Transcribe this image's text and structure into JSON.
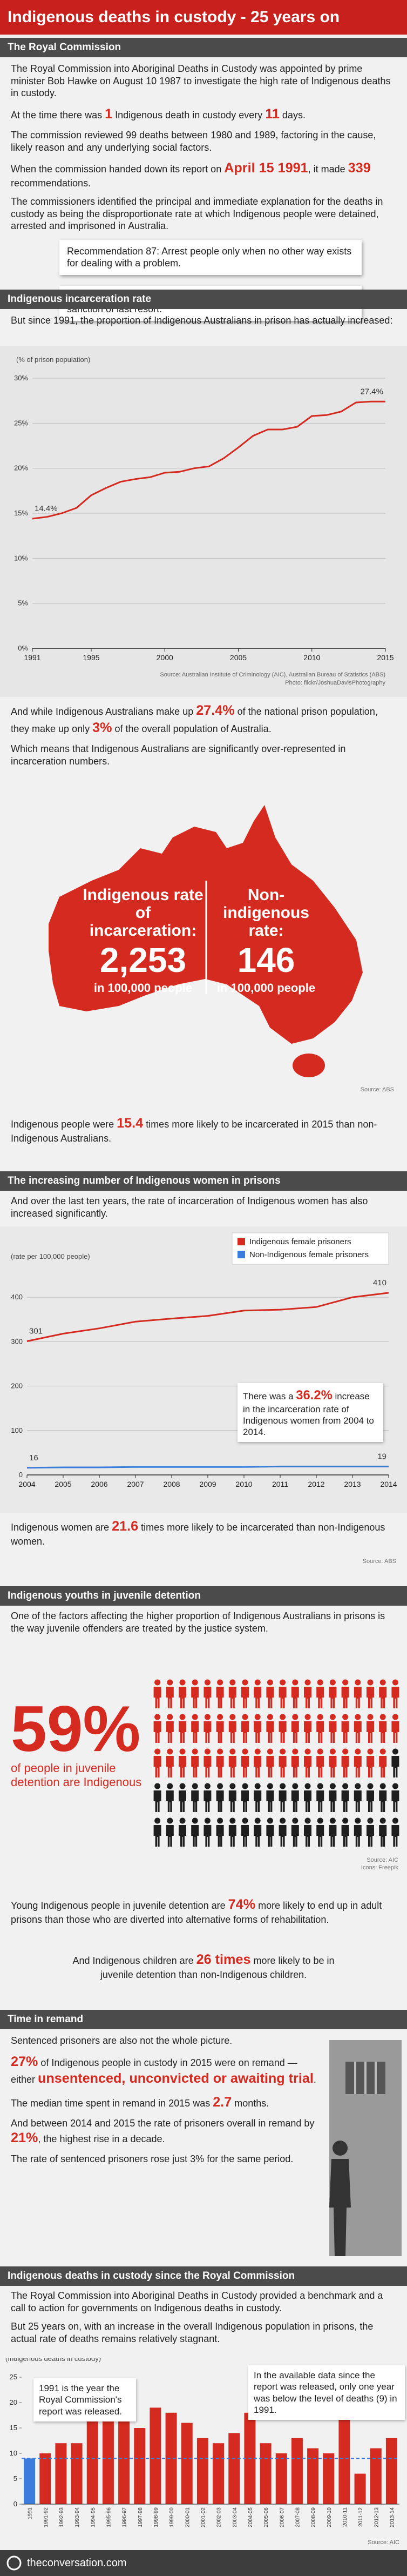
{
  "title": "Indigenous deaths in custody - 25 years on",
  "sections": [
    {
      "heading": "The Royal Commission",
      "paragraphs": [
        [
          "The Royal Commission into Aboriginal Deaths in Custody was appointed by prime minister Bob Hawke on August 10 1987 to investigate the high rate of Indigenous deaths in custody."
        ],
        [
          "At the time there was ",
          {
            "em": "1"
          },
          " Indigenous death in custody every ",
          {
            "em": "11"
          },
          " days."
        ],
        [
          "The commission reviewed 99 deaths between 1980 and 1989, factoring in the cause, likely reason and any underlying social factors."
        ],
        [
          "When the commission handed down its report on ",
          {
            "em": "April 15 1991"
          },
          ", it made ",
          {
            "em": "339"
          },
          " recommendations."
        ],
        [
          "The commissioners identified the principal and immediate explanation for the deaths in custody as being the disproportionate rate at which Indigenous people were detained, arrested and imprisoned in Australia."
        ]
      ],
      "recommendations": [
        "Recommendation 87: Arrest people only when no other way exists for dealing with a problem.",
        "Recommendation 92: Imprisonment should be utilised only as a sanction of last resort."
      ]
    },
    {
      "heading": "Indigenous incarceration rate",
      "intro": [
        [
          "But since 1991, the proportion of Indigenous Australians in prison has actually increased:"
        ]
      ],
      "paragraphs": [
        [
          "And while Indigenous Australians make up ",
          {
            "em": "27.4%"
          },
          " of the national prison population, they make up only ",
          {
            "em": "3%"
          },
          " of the overall population of Australia."
        ],
        [
          "Which means that Indigenous Australians are significantly over-represented in incarceration numbers."
        ]
      ],
      "map": {
        "left_label": "Indigenous rate of incarceration:",
        "left_value": "2,253",
        "left_unit": "in 100,000 people",
        "right_label": "Non-indigenous rate:",
        "right_value": "146",
        "right_unit": "in 100,000 people",
        "source": "Source: ABS"
      },
      "conclusion": [
        [
          "Indigenous people were ",
          {
            "em": "15.4"
          },
          " times more likely to be incarcerated in 2015 than non-Indigenous Australians."
        ]
      ]
    },
    {
      "heading": "The increasing number of Indigenous women in prisons",
      "intro": [
        [
          "And over the last ten years, the rate of incarceration of Indigenous women has also increased significantly."
        ]
      ],
      "conclusion": [
        [
          "Indigenous women are ",
          {
            "em": "21.6"
          },
          " times more likely to be incarcerated than non-Indigenous women."
        ]
      ],
      "source": "Source: ABS"
    },
    {
      "heading": "Indigenous youths in juvenile detention",
      "intro": [
        [
          "One of the factors affecting the higher proportion of Indigenous Australians in prisons is the way juvenile offenders are treated by the justice system."
        ]
      ],
      "pictogram": {
        "value": 59,
        "value_label": "59%",
        "caption": "of people in juvenile detention are Indigenous",
        "sources": [
          "Source: AIC",
          "Icons: Freepik"
        ]
      },
      "paragraphs": [
        [
          "Young Indigenous people in juvenile detention are ",
          {
            "em": "74%"
          },
          " more likely to end up in adult prisons than those who are diverted into alternative forms of rehabilitation."
        ]
      ],
      "closing": [
        [
          "And Indigenous children are ",
          {
            "em": "26 times"
          },
          " more likely to be in juvenile detention than non-Indigenous children."
        ]
      ]
    },
    {
      "heading": "Time in remand",
      "paragraphs": [
        [
          "Sentenced prisoners are also not the whole picture."
        ],
        [
          {
            "em": "27%"
          },
          " of Indigenous people in custody in 2015 were on remand — either ",
          {
            "em": "unsentenced, unconvicted or awaiting trial"
          },
          "."
        ],
        [
          "The median time spent in remand in 2015 was ",
          {
            "em": "2.7"
          },
          " months."
        ],
        [
          "And between 2014 and 2015 the rate of prisoners overall in remand by ",
          {
            "em": "21%"
          },
          ", the highest rise in a decade."
        ],
        [
          "The rate of sentenced prisoners rose just 3% for the same period."
        ]
      ]
    },
    {
      "heading": "Indigenous deaths in custody since the Royal Commission",
      "paragraphs": [
        [
          "The Royal Commission into Aboriginal Deaths in Custody provided a benchmark and a call to action for governments on Indigenous deaths in custody."
        ],
        [
          "But 25 years on, with an increase in the overall Indigenous population in prisons, the actual rate of deaths remains relatively stagnant."
        ]
      ]
    }
  ],
  "chart_data": [
    {
      "type": "line",
      "y_label": "(% of prison population)",
      "x": [
        1991,
        1992,
        1993,
        1994,
        1995,
        1996,
        1997,
        1998,
        1999,
        2000,
        2001,
        2002,
        2003,
        2004,
        2005,
        2006,
        2007,
        2008,
        2009,
        2010,
        2011,
        2012,
        2013,
        2014,
        2015
      ],
      "xlim": [
        1991,
        2015
      ],
      "xticks": [
        1991,
        1995,
        2000,
        2005,
        2010,
        2015
      ],
      "ylim": [
        0,
        30
      ],
      "yticks": [
        {
          "value": 0,
          "label": "0%"
        },
        {
          "value": 5,
          "label": "5%"
        },
        {
          "value": 10,
          "label": "10%"
        },
        {
          "value": 15,
          "label": "15%"
        },
        {
          "value": 20,
          "label": "20%"
        },
        {
          "value": 25,
          "label": "25%"
        },
        {
          "value": 30,
          "label": "30%"
        }
      ],
      "grid": true,
      "series": [
        {
          "name": "Indigenous share of prison population",
          "color": "#d42a20",
          "values": [
            14.4,
            14.6,
            15.0,
            15.6,
            17.0,
            17.8,
            18.5,
            18.8,
            19.0,
            19.5,
            19.6,
            20.0,
            20.2,
            21.1,
            22.3,
            23.6,
            24.3,
            24.3,
            24.6,
            25.8,
            25.9,
            26.3,
            27.3,
            27.4,
            27.4
          ],
          "value_labels": [
            "14.4%",
            null,
            null,
            null,
            null,
            null,
            null,
            null,
            null,
            null,
            null,
            null,
            null,
            null,
            null,
            null,
            null,
            null,
            null,
            null,
            null,
            null,
            null,
            null,
            "27.4%"
          ]
        }
      ],
      "source": "Source: Australian Institute of Criminology (AIC), Australian Bureau of Statistics (ABS)",
      "credit": "Photo: flickr/JoshuaDavisPhotography"
    },
    {
      "type": "line",
      "y_label": "(rate per 100,000 people)",
      "x": [
        2004,
        2005,
        2006,
        2007,
        2008,
        2009,
        2010,
        2011,
        2012,
        2013,
        2014
      ],
      "xlim": [
        2004,
        2014
      ],
      "xticks": [
        2004,
        2005,
        2006,
        2007,
        2008,
        2009,
        2010,
        2011,
        2012,
        2013,
        2014
      ],
      "ylim": [
        0,
        450
      ],
      "yticks": [
        0,
        100,
        200,
        300,
        400
      ],
      "grid": true,
      "legend": "top-right",
      "end_labels": true,
      "series": [
        {
          "name": "Indigenous female prisoners",
          "color": "#d42a20",
          "values": [
            301,
            318,
            330,
            345,
            352,
            358,
            370,
            372,
            378,
            400,
            410
          ]
        },
        {
          "name": "Non-Indigenous female prisoners",
          "color": "#3b7ddd",
          "values": [
            16,
            17,
            17,
            18,
            18,
            18,
            18,
            19,
            19,
            19,
            19
          ]
        }
      ],
      "annotation": [
        "There was a ",
        {
          "em": "36.2%"
        },
        " increase in the incarceration rate of Indigenous women from 2004 to 2014."
      ]
    },
    {
      "type": "bar",
      "y_label": "(Indigenous deaths in custody)",
      "categories": [
        "1991",
        "1991-92",
        "1992-93",
        "1993-94",
        "1994-95",
        "1995-96",
        "1996-97",
        "1997-98",
        "1998-99",
        "1999-00",
        "2000-01",
        "2001-02",
        "2002-03",
        "2003-04",
        "2004-05",
        "2005-06",
        "2006-07",
        "2007-08",
        "2008-09",
        "2009-10",
        "2010-11",
        "2011-12",
        "2012-13",
        "2013-14"
      ],
      "values": [
        9,
        10,
        12,
        12,
        18,
        19,
        19,
        15,
        19,
        18,
        16,
        13,
        12,
        14,
        18,
        12,
        10,
        13,
        11,
        10,
        17,
        6,
        11,
        13
      ],
      "colors": [
        "#3b7ddd",
        "#d42a20",
        "#d42a20",
        "#d42a20",
        "#d42a20",
        "#d42a20",
        "#d42a20",
        "#d42a20",
        "#d42a20",
        "#d42a20",
        "#d42a20",
        "#d42a20",
        "#d42a20",
        "#d42a20",
        "#d42a20",
        "#d42a20",
        "#d42a20",
        "#d42a20",
        "#d42a20",
        "#d42a20",
        "#d42a20",
        "#d42a20",
        "#d42a20",
        "#d42a20"
      ],
      "ylim": [
        0,
        25
      ],
      "yticks": [
        0,
        5,
        10,
        15,
        20,
        25
      ],
      "grid": false,
      "reference_line": 9,
      "annotations": [
        "1991 is the year the Royal Commission's report was released.",
        "In the available data since the report was released, only one year was below the level of deaths (9) in 1991."
      ],
      "source": "Source: AIC"
    }
  ],
  "footer": "theconversation.com"
}
